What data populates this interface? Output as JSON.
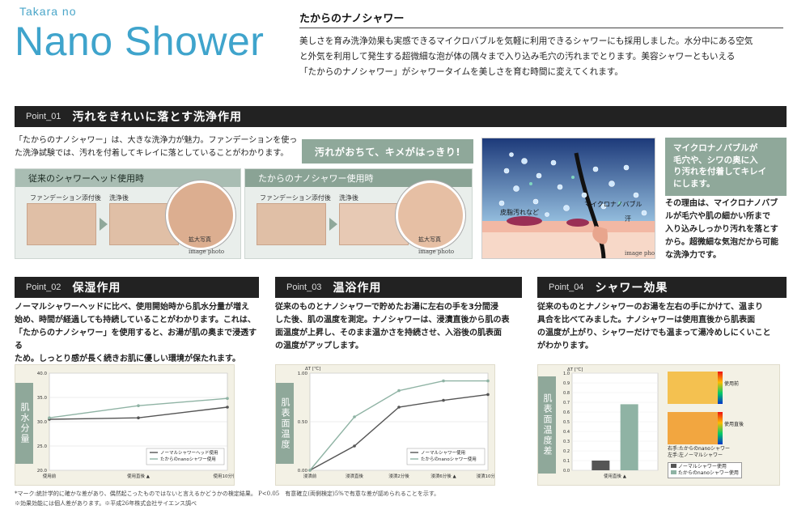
{
  "brand": {
    "small": "Takara no",
    "big": "Nano Shower"
  },
  "intro": {
    "heading": "たからのナノシャワー",
    "lines": [
      "美しさを育み洗浄効果も実感できるマイクロバブルを気軽に利用できるシャワーにも採用しました。水分中にある空気",
      "と外気を利用して発生する超微細な泡が体の隅々まで入り込み毛穴の汚れまでとります。美容シャワーともいえる",
      "「たからのナノシャワー」がシャワータイムを美しさを育む時間に変えてくれます。"
    ]
  },
  "point1": {
    "tag": "Point_01",
    "title": "汚れをきれいに落とす洗浄作用",
    "lines": [
      "「たからのナノシャワー」は、大きな洗浄力が魅力。ファンデーションを使っ",
      "た洗浄試験では、汚れを付着してキレイに落としていることがわかります。"
    ],
    "bubble": "汚れがおちて、キメがはっきり!",
    "pane_left": {
      "header": "従来のシャワーヘッド使用時",
      "before": "ファンデーション添付後",
      "after": "洗浄後",
      "zoom": "拡大写真",
      "note": "image photo"
    },
    "pane_right": {
      "header": "たからのナノシャワー使用時",
      "before": "ファンデーション添付後",
      "after": "洗浄後",
      "zoom": "拡大写真",
      "note": "image photo"
    },
    "illustration": {
      "label_bubble": "マイクロナノバブル",
      "label_dirt": "皮脂汚れなど",
      "label_sweat": "汗",
      "note": "image photo"
    },
    "green_lines": [
      "マイクロナノバブルが",
      "毛穴や、シワの奥に入",
      "り汚れを付着してキレイ",
      "にします。"
    ],
    "side_lines": [
      "その理由は、マイクロナノバブ",
      "ルが毛穴や肌の細かい所まで",
      "入り込みしっかり汚れを落とす",
      "から。超微細な気泡だから可能",
      "な洗浄力です。"
    ]
  },
  "point2": {
    "tag": "Point_02",
    "title": "保湿作用",
    "lines": [
      "ノーマルシャワーヘッドに比べ、使用開始時から肌水分量が増え",
      "始め、時間が経過しても持続していることがわかります。これは、",
      "「たからのナノシャワー」を使用すると、お湯が肌の奥まで浸透する",
      "ため。しっとり感が長く続きお肌に優しい環境が保たれます。"
    ],
    "vlabel": "肌水分量"
  },
  "point3": {
    "tag": "Point_03",
    "title": "温浴作用",
    "lines": [
      "従来のものとナノシャワーで貯めたお湯に左右の手を3分間浸",
      "した後、肌の温度を測定。ナノシャワーは、浸漬直後から肌の表",
      "面温度が上昇し、そのまま温かさを持続させ、入浴後の肌表面",
      "の温度がアップします。"
    ],
    "vlabel": "肌表面温度"
  },
  "point4": {
    "tag": "Point_04",
    "title": "シャワー効果",
    "lines": [
      "従来のものとナノシャワーのお湯を左右の手にかけて、温まり",
      "具合を比べてみました。ナノシャワーは使用直後から肌表面",
      "の温度が上がり、シャワーだけでも温まって湯冷めしにくいこと",
      "がわかります。"
    ],
    "vlabel": "肌表面温度差",
    "thermo_labels": [
      "使用前",
      "使用直後"
    ],
    "thermo_caption": [
      "右手:たからのnanoシャワー",
      "左手:左ノーマルシャワー"
    ]
  },
  "chart_data": [
    {
      "type": "line",
      "categories": [
        "使用前",
        "使用直後 ▲",
        "使用10分後 ▲"
      ],
      "ylim": [
        20.0,
        40.0
      ],
      "yticks": [
        "20.0",
        "25.0",
        "30.0",
        "35.0",
        "40.0"
      ],
      "series": [
        {
          "name": "ノーマルシャワーヘッド使用",
          "values": [
            30.5,
            30.8,
            33.0
          ],
          "color": "#555555"
        },
        {
          "name": "たからのnanoシャワー使用",
          "values": [
            30.8,
            33.3,
            34.8
          ],
          "color": "#8fb3a4"
        }
      ]
    },
    {
      "type": "line",
      "ylabel": "ΔT [℃]",
      "categories": [
        "浸漬前",
        "浸漬直後",
        "浸漬2分後",
        "浸漬6分後 ▲",
        "浸漬10分後"
      ],
      "ylim": [
        0.0,
        1.0
      ],
      "yticks": [
        "0.00",
        "0.50",
        "1.00"
      ],
      "series": [
        {
          "name": "ノーマルシャワー使用",
          "values": [
            0.0,
            0.25,
            0.65,
            0.72,
            0.78
          ],
          "color": "#555555"
        },
        {
          "name": "たからのnanoシャワー使用",
          "values": [
            0.0,
            0.55,
            0.82,
            0.92,
            0.92
          ],
          "color": "#8fb3a4"
        }
      ]
    },
    {
      "type": "bar",
      "ylabel": "ΔT [℃]",
      "categories": [
        "使用直後 ▲"
      ],
      "ylim": [
        0.0,
        1.0
      ],
      "yticks": [
        "0.0",
        "0.1",
        "0.2",
        "0.3",
        "0.4",
        "0.5",
        "0.6",
        "0.7",
        "0.8",
        "0.9",
        "1.0"
      ],
      "series": [
        {
          "name": "ノーマルシャワー使用",
          "values": [
            0.1
          ],
          "color": "#555555"
        },
        {
          "name": "たからのnanoシャワー使用",
          "values": [
            0.68
          ],
          "color": "#8fb3a4"
        }
      ]
    }
  ],
  "footnotes": [
    "*マーク:統計学的に確かな差があり、偶然起こったものではないと言えるかどうかの検定結果。 P<0.05　有意確立(両側検定)5%で有意な差が認められることを示す。",
    "※効果効能には個人差があります。※平成26年株式会社サイエンス調べ"
  ]
}
